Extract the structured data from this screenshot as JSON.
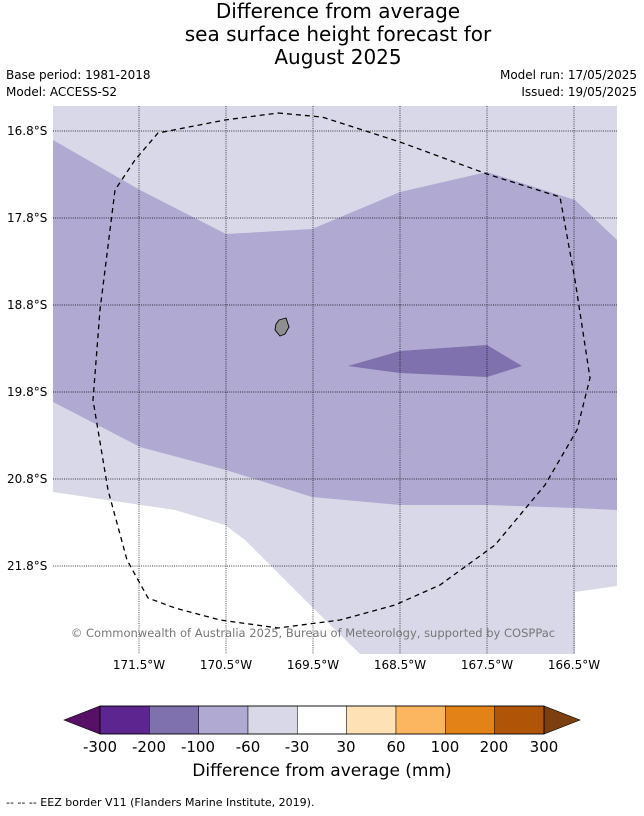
{
  "title": {
    "line1": "Difference from average",
    "line2": "sea surface height forecast for",
    "line3": "August 2025"
  },
  "meta": {
    "base_period": "Base period: 1981-2018",
    "model": "Model: ACCESS-S2",
    "model_run": "Model run: 17/05/2025",
    "issued": "Issued: 19/05/2025"
  },
  "map": {
    "lat_labels": [
      "16.8°S",
      "17.8°S",
      "18.8°S",
      "19.8°S",
      "20.8°S",
      "21.8°S"
    ],
    "lon_labels": [
      "171.5°W",
      "170.5°W",
      "169.5°W",
      "168.5°W",
      "167.5°W",
      "166.5°W"
    ],
    "copyright": "© Commonwealth of Australia 2025, Bureau of Meteorology, supported by COSPPac",
    "colors": {
      "land": "#8f8f8f",
      "band_-100_-60": "#b0a9d2",
      "band_-60_-30": "#d8d8e9",
      "band_-200_-100": "#7e71ae",
      "eez_line": "#000000"
    }
  },
  "colorbar": {
    "tick_labels": [
      "-300",
      "-200",
      "-100",
      "-60",
      "-30",
      "30",
      "60",
      "100",
      "200",
      "300"
    ],
    "colors": [
      "#580f66",
      "#5c2590",
      "#7e71ae",
      "#b0a9d2",
      "#d8d8e9",
      "#ffffff",
      "#fee1b5",
      "#fcb660",
      "#e38217",
      "#b05407",
      "#7c3f10"
    ],
    "label": "Difference from average (mm)"
  },
  "footer": "--  --  -- EEZ border V11 (Flanders Marine Institute, 2019)."
}
